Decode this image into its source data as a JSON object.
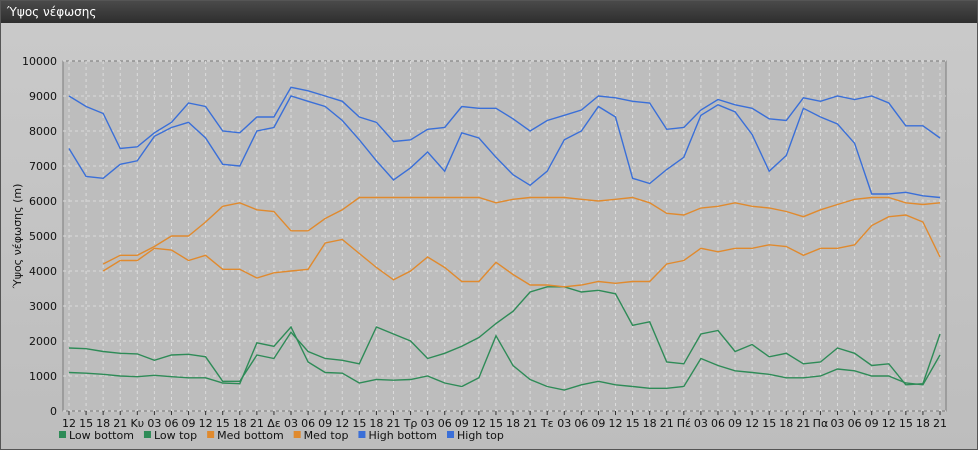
{
  "window": {
    "title": "Ύψος νέφωσης"
  },
  "chart_data": {
    "type": "line",
    "title": "",
    "xlabel": "",
    "ylabel": "Ύψος νέφωσης (m)",
    "ylim": [
      0,
      10000
    ],
    "yticks": [
      0,
      1000,
      2000,
      3000,
      4000,
      5000,
      6000,
      7000,
      8000,
      9000,
      10000
    ],
    "grid": true,
    "legend_position": "bottom-left",
    "categories": [
      "12",
      "15",
      "18",
      "21",
      "Κυ",
      "03",
      "06",
      "09",
      "12",
      "15",
      "18",
      "21",
      "Δε",
      "03",
      "06",
      "09",
      "12",
      "15",
      "18",
      "21",
      "Τρ",
      "03",
      "06",
      "09",
      "12",
      "15",
      "18",
      "21",
      "Τε",
      "03",
      "06",
      "09",
      "12",
      "15",
      "18",
      "21",
      "Πέ",
      "03",
      "06",
      "09",
      "12",
      "15",
      "18",
      "21",
      "Πα",
      "03",
      "06",
      "09",
      "12",
      "15",
      "18",
      "21"
    ],
    "series": [
      {
        "name": "Low bottom",
        "color": "#2e8b57",
        "values": [
          1100,
          1080,
          1050,
          1000,
          980,
          1020,
          980,
          950,
          950,
          800,
          780,
          1950,
          1850,
          2400,
          1400,
          1100,
          1080,
          800,
          900,
          880,
          900,
          1000,
          800,
          700,
          950,
          2150,
          1300,
          900,
          700,
          600,
          750,
          850,
          750,
          700,
          650,
          650,
          700,
          1500,
          1300,
          1150,
          1100,
          1050,
          950,
          950,
          1000,
          1200,
          1150,
          1000,
          1000,
          800,
          750,
          1600
        ]
      },
      {
        "name": "Low top",
        "color": "#2e8b57",
        "values": [
          1800,
          1780,
          1700,
          1650,
          1630,
          1450,
          1600,
          1620,
          1550,
          850,
          850,
          1600,
          1500,
          2250,
          1700,
          1500,
          1450,
          1350,
          2400,
          2200,
          2000,
          1500,
          1650,
          1850,
          2100,
          2500,
          2850,
          3400,
          3550,
          3550,
          3400,
          3450,
          3350,
          2450,
          2550,
          1400,
          1350,
          2200,
          2300,
          1700,
          1900,
          1550,
          1650,
          1350,
          1400,
          1800,
          1650,
          1300,
          1350,
          750,
          780,
          2200
        ]
      },
      {
        "name": "Med bottom",
        "color": "#e08a2e",
        "values": [
          null,
          null,
          4000,
          4300,
          4300,
          4650,
          4600,
          4300,
          4450,
          4050,
          4050,
          3800,
          3950,
          4000,
          4050,
          4800,
          4900,
          4500,
          4100,
          3750,
          4000,
          4400,
          4100,
          3700,
          3700,
          4250,
          3900,
          3600,
          3600,
          3550,
          3600,
          3700,
          3650,
          3700,
          3700,
          4200,
          4300,
          4650,
          4550,
          4650,
          4650,
          4750,
          4700,
          4450,
          4650,
          4650,
          4750,
          5300,
          5550,
          5600,
          5400,
          4400
        ]
      },
      {
        "name": "Med top",
        "color": "#e08a2e",
        "values": [
          null,
          null,
          4200,
          4450,
          4450,
          4700,
          5000,
          5000,
          5400,
          5850,
          5950,
          5750,
          5700,
          5150,
          5150,
          5500,
          5750,
          6100,
          6100,
          6100,
          6100,
          6100,
          6100,
          6100,
          6100,
          5950,
          6050,
          6100,
          6100,
          6100,
          6050,
          6000,
          6050,
          6100,
          5950,
          5650,
          5600,
          5800,
          5850,
          5950,
          5850,
          5800,
          5700,
          5550,
          5750,
          5900,
          6050,
          6100,
          6100,
          5950,
          5900,
          5950
        ]
      },
      {
        "name": "High bottom",
        "color": "#3a6fd8",
        "values": [
          7500,
          6700,
          6650,
          7050,
          7150,
          7850,
          8100,
          8250,
          7800,
          7050,
          7000,
          8000,
          8100,
          9000,
          8850,
          8700,
          8300,
          7750,
          7150,
          6600,
          6950,
          7400,
          6850,
          7950,
          7800,
          7250,
          6750,
          6450,
          6850,
          7750,
          8000,
          8700,
          8400,
          6650,
          6500,
          6900,
          7250,
          8450,
          8750,
          8550,
          7900,
          6850,
          7300,
          8650,
          8400,
          8200,
          7650,
          6200,
          6200,
          6250,
          6150,
          6100
        ]
      },
      {
        "name": "High top",
        "color": "#3a6fd8",
        "values": [
          9000,
          8700,
          8500,
          7500,
          7550,
          7950,
          8250,
          8800,
          8700,
          8000,
          7950,
          8400,
          8400,
          9250,
          9150,
          9000,
          8850,
          8400,
          8250,
          7700,
          7750,
          8050,
          8100,
          8700,
          8650,
          8650,
          8350,
          8000,
          8300,
          8450,
          8600,
          9000,
          8950,
          8850,
          8800,
          8050,
          8100,
          8600,
          8900,
          8750,
          8650,
          8350,
          8300,
          8950,
          8850,
          9000,
          8900,
          9000,
          8800,
          8150,
          8150,
          7800
        ]
      }
    ]
  }
}
